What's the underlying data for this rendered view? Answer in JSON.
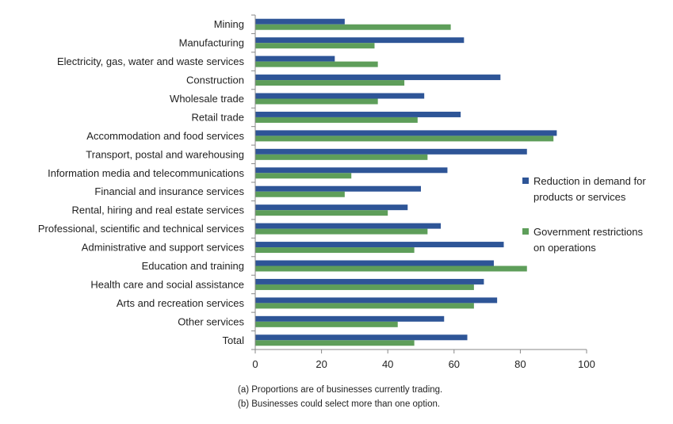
{
  "chart_data": {
    "type": "bar",
    "orientation": "horizontal",
    "categories": [
      "Mining",
      "Manufacturing",
      "Electricity, gas, water and waste services",
      "Construction",
      "Wholesale trade",
      "Retail trade",
      "Accommodation and food services",
      "Transport, postal and warehousing",
      "Information media and telecommunications",
      "Financial and insurance services",
      "Rental, hiring and real estate services",
      "Professional, scientific and technical services",
      "Administrative and support services",
      "Education and training",
      "Health care and social assistance",
      "Arts and recreation services",
      "Other services",
      "Total"
    ],
    "series": [
      {
        "name": "Reduction in demand for products or services",
        "name_lines": [
          "Reduction in demand for",
          "products or services"
        ],
        "color": "#2e5597",
        "values": [
          27,
          63,
          24,
          74,
          51,
          62,
          91,
          82,
          58,
          50,
          46,
          56,
          75,
          72,
          69,
          73,
          57,
          64
        ]
      },
      {
        "name": "Government restrictions on operations",
        "name_lines": [
          "Government restrictions",
          "on operations"
        ],
        "color": "#5e9e5a",
        "values": [
          59,
          36,
          37,
          45,
          37,
          49,
          90,
          52,
          29,
          27,
          40,
          52,
          48,
          82,
          66,
          66,
          43,
          48
        ]
      }
    ],
    "xlim": [
      0,
      100
    ],
    "xticks": [
      "0",
      "20",
      "40",
      "60",
      "80",
      "100"
    ],
    "legend_position": "right",
    "grid": false,
    "notes": [
      "(a) Proportions are of businesses currently trading.",
      "(b) Businesses could select more than one option."
    ]
  }
}
